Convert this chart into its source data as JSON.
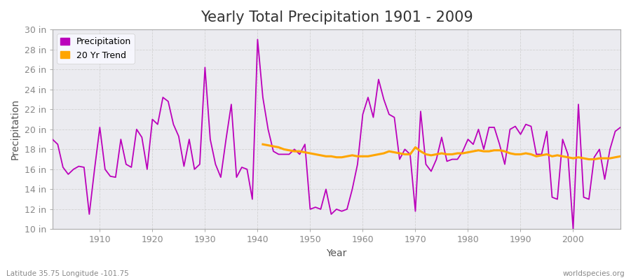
{
  "title": "Yearly Total Precipitation 1901 - 2009",
  "xlabel": "Year",
  "ylabel": "Precipitation",
  "lat_lon_label": "Latitude 35.75 Longitude -101.75",
  "watermark": "worldspecies.org",
  "years": [
    1901,
    1902,
    1903,
    1904,
    1905,
    1906,
    1907,
    1908,
    1909,
    1910,
    1911,
    1912,
    1913,
    1914,
    1915,
    1916,
    1917,
    1918,
    1919,
    1920,
    1921,
    1922,
    1923,
    1924,
    1925,
    1926,
    1927,
    1928,
    1929,
    1930,
    1931,
    1932,
    1933,
    1934,
    1935,
    1936,
    1937,
    1938,
    1939,
    1940,
    1941,
    1942,
    1943,
    1944,
    1945,
    1946,
    1947,
    1948,
    1949,
    1950,
    1951,
    1952,
    1953,
    1954,
    1955,
    1956,
    1957,
    1958,
    1959,
    1960,
    1961,
    1962,
    1963,
    1964,
    1965,
    1966,
    1967,
    1968,
    1969,
    1970,
    1971,
    1972,
    1973,
    1974,
    1975,
    1976,
    1977,
    1978,
    1979,
    1980,
    1981,
    1982,
    1983,
    1984,
    1985,
    1986,
    1987,
    1988,
    1989,
    1990,
    1991,
    1992,
    1993,
    1994,
    1995,
    1996,
    1997,
    1998,
    1999,
    2000,
    2001,
    2002,
    2003,
    2004,
    2005,
    2006,
    2007,
    2008,
    2009
  ],
  "precip": [
    19.0,
    18.5,
    16.2,
    15.5,
    16.0,
    16.3,
    16.2,
    11.5,
    16.0,
    20.2,
    16.0,
    15.3,
    15.2,
    19.0,
    16.5,
    16.2,
    20.0,
    19.2,
    16.0,
    21.0,
    20.5,
    23.2,
    22.8,
    20.5,
    19.3,
    16.3,
    19.0,
    16.0,
    16.5,
    26.2,
    19.0,
    16.5,
    15.2,
    19.0,
    22.5,
    15.2,
    16.2,
    16.0,
    13.0,
    29.0,
    23.2,
    20.0,
    17.8,
    17.5,
    17.5,
    17.5,
    18.0,
    17.5,
    18.5,
    12.0,
    12.2,
    12.0,
    14.0,
    11.5,
    12.0,
    11.8,
    12.0,
    14.0,
    16.5,
    21.5,
    23.2,
    21.2,
    25.0,
    23.0,
    21.5,
    21.2,
    17.0,
    18.0,
    17.5,
    11.8,
    21.8,
    16.5,
    15.8,
    17.0,
    19.2,
    16.8,
    17.0,
    17.0,
    17.8,
    19.0,
    18.5,
    20.0,
    18.0,
    20.2,
    20.2,
    18.5,
    16.5,
    20.0,
    20.3,
    19.5,
    20.5,
    20.3,
    17.5,
    17.5,
    19.8,
    13.2,
    13.0,
    19.0,
    17.5,
    10.0,
    22.5,
    13.2,
    13.0,
    17.2,
    18.0,
    15.0,
    18.0,
    19.8,
    20.2
  ],
  "trend_years": [
    1941,
    1942,
    1943,
    1944,
    1945,
    1946,
    1947,
    1948,
    1949,
    1950,
    1951,
    1952,
    1953,
    1954,
    1955,
    1956,
    1957,
    1958,
    1959,
    1960,
    1961,
    1962,
    1963,
    1964,
    1965,
    1966,
    1967,
    1968,
    1969,
    1970,
    1971,
    1972,
    1973,
    1974,
    1975,
    1976,
    1977,
    1978,
    1979,
    1980,
    1981,
    1982,
    1983,
    1984,
    1985,
    1986,
    1987,
    1988,
    1989,
    1990,
    1991,
    1992,
    1993,
    1994,
    1995,
    1996,
    1997,
    1998,
    1999,
    2000,
    2001,
    2002,
    2003,
    2004,
    2005,
    2006,
    2007,
    2008,
    2009
  ],
  "trend_vals": [
    18.5,
    18.4,
    18.3,
    18.2,
    18.0,
    17.9,
    17.8,
    17.8,
    17.7,
    17.6,
    17.5,
    17.4,
    17.3,
    17.3,
    17.2,
    17.2,
    17.3,
    17.4,
    17.3,
    17.3,
    17.3,
    17.4,
    17.5,
    17.6,
    17.8,
    17.7,
    17.6,
    17.5,
    17.5,
    18.2,
    17.8,
    17.5,
    17.4,
    17.5,
    17.6,
    17.5,
    17.5,
    17.6,
    17.6,
    17.7,
    17.8,
    17.9,
    17.8,
    17.8,
    17.9,
    17.9,
    17.8,
    17.6,
    17.5,
    17.5,
    17.6,
    17.5,
    17.3,
    17.4,
    17.5,
    17.3,
    17.4,
    17.3,
    17.2,
    17.1,
    17.2,
    17.1,
    17.0,
    17.0,
    17.1,
    17.1,
    17.1,
    17.2,
    17.3
  ],
  "precip_color": "#BB00BB",
  "trend_color": "#FFA500",
  "fig_bg_color": "#FFFFFF",
  "plot_bg_color": "#EBEBF0",
  "grid_color": "#CCCCCC",
  "ylim_min": 10,
  "ylim_max": 30,
  "ytick_values": [
    10,
    12,
    14,
    16,
    18,
    20,
    22,
    24,
    26,
    28,
    30
  ],
  "ytick_labels": [
    "10 in",
    "12 in",
    "14 in",
    "16 in",
    "18 in",
    "20 in",
    "22 in",
    "24 in",
    "26 in",
    "28 in",
    "30 in"
  ],
  "xtick_values": [
    1910,
    1920,
    1930,
    1940,
    1950,
    1960,
    1970,
    1980,
    1990,
    2000
  ],
  "title_fontsize": 15,
  "axis_label_fontsize": 10,
  "tick_fontsize": 9,
  "legend_fontsize": 9
}
